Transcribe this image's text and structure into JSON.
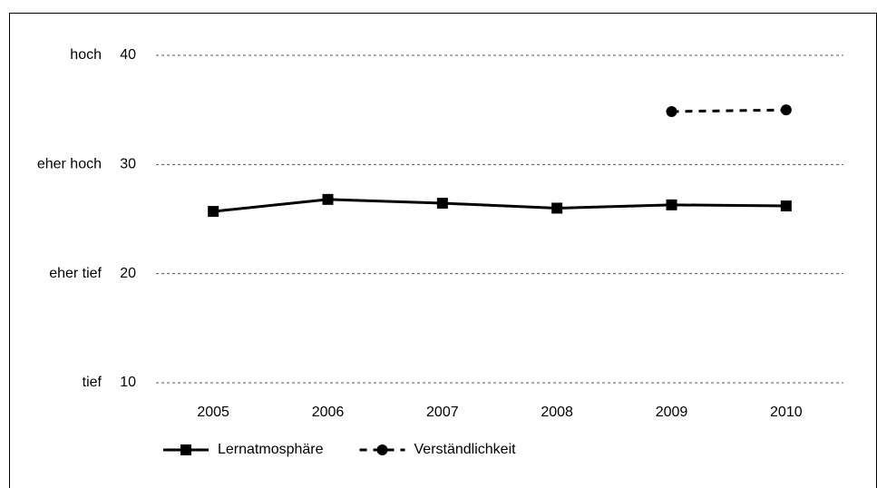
{
  "chart_data": {
    "type": "line",
    "categories": [
      "2005",
      "2006",
      "2007",
      "2008",
      "2009",
      "2010"
    ],
    "series": [
      {
        "name": "Lernatmosphäre",
        "color": "#000000",
        "dash": "solid",
        "marker": "square",
        "values": [
          25.7,
          26.8,
          26.45,
          26.0,
          26.3,
          26.2
        ]
      },
      {
        "name": "Verständlichkeit",
        "color": "#000000",
        "dash": "dashed",
        "marker": "circle",
        "values": [
          null,
          null,
          null,
          null,
          34.85,
          35.0
        ]
      }
    ],
    "ylim": [
      10,
      40
    ],
    "yticks": [
      10,
      20,
      30,
      40
    ],
    "ytick_names": [
      "tief",
      "eher tief",
      "eher hoch",
      "hoch"
    ],
    "grid": true,
    "legend": "bottom-left"
  }
}
